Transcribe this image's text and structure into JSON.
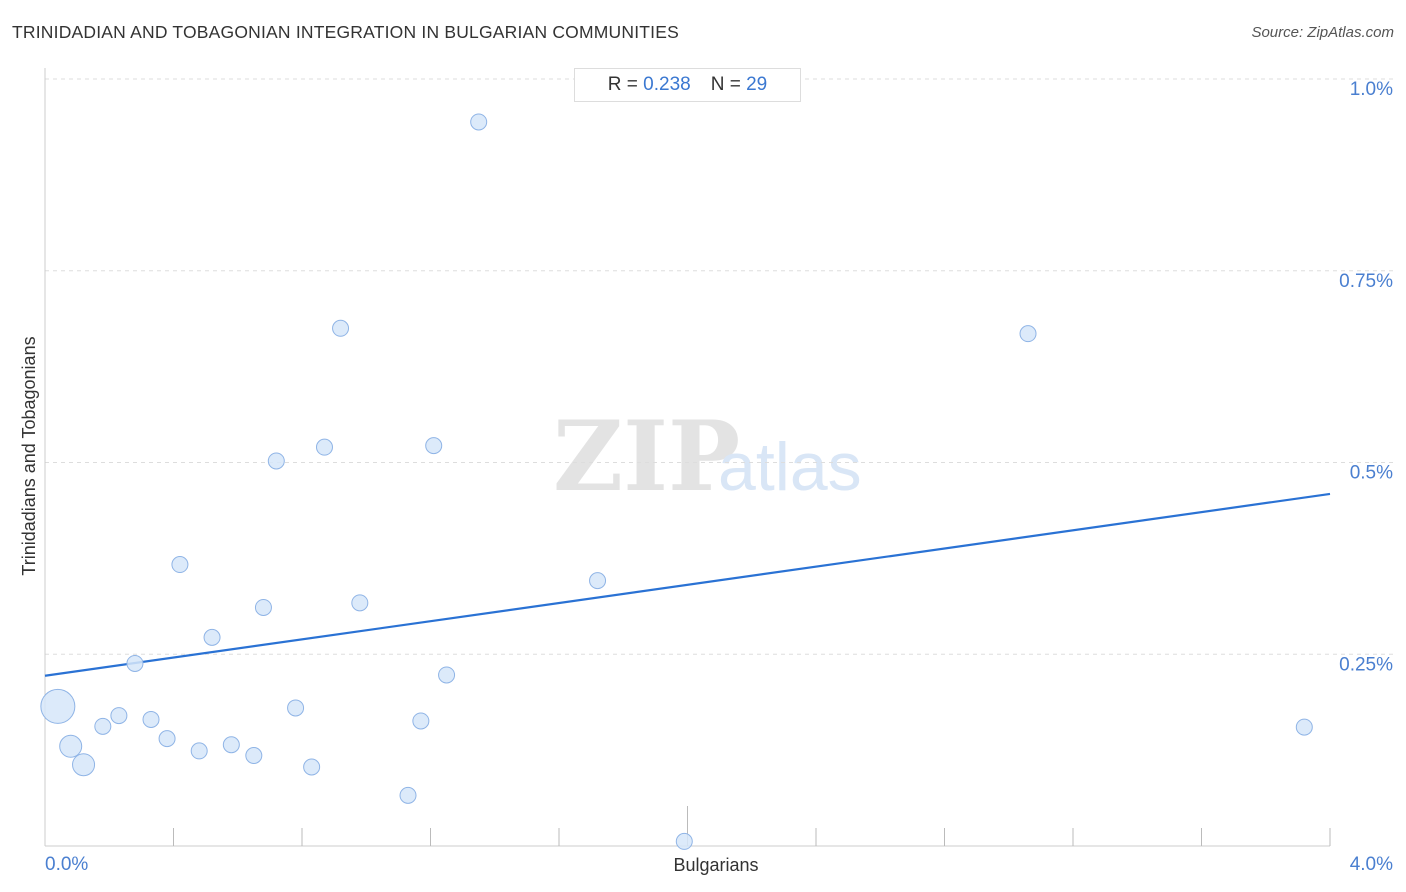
{
  "header": {
    "title": "TRINIDADIAN AND TOBAGONIAN INTEGRATION IN BULGARIAN COMMUNITIES",
    "source": "Source: ZipAtlas.com"
  },
  "stats": {
    "r_label": "R =",
    "r_value": "0.238",
    "n_label": "N =",
    "n_value": "29"
  },
  "watermark": {
    "zip": "ZIP",
    "atlas": "atlas"
  },
  "colors": {
    "point_fill": "#d6e6f9",
    "point_stroke": "#8fb4e6",
    "trend_line": "#2a72d4",
    "tick_label": "#4a7fd0",
    "grid": "#dddddd"
  },
  "chart_data": {
    "type": "scatter",
    "title": "TRINIDADIAN AND TOBAGONIAN INTEGRATION IN BULGARIAN COMMUNITIES",
    "xlabel": "Bulgarians",
    "ylabel": "Trinidadians and Tobagonians",
    "xlim": [
      0,
      4.0
    ],
    "ylim": [
      0,
      1.0
    ],
    "x_unit": "%",
    "y_unit": "%",
    "x_tick_labels": [
      {
        "value": 0.0,
        "label": "0.0%"
      },
      {
        "value": 4.0,
        "label": "4.0%"
      }
    ],
    "y_tick_labels": [
      {
        "value": 0.25,
        "label": "0.25%"
      },
      {
        "value": 0.5,
        "label": "0.5%"
      },
      {
        "value": 0.75,
        "label": "0.75%"
      },
      {
        "value": 1.0,
        "label": "1.0%"
      }
    ],
    "grid": "horizontal dashed",
    "trend_line": {
      "x": [
        0.0,
        4.0
      ],
      "y": [
        0.222,
        0.459
      ]
    },
    "points": [
      {
        "x": 0.04,
        "y": 0.182,
        "size": "large"
      },
      {
        "x": 0.08,
        "y": 0.13,
        "size": "medium"
      },
      {
        "x": 0.12,
        "y": 0.106,
        "size": "medium"
      },
      {
        "x": 0.18,
        "y": 0.156,
        "size": "small"
      },
      {
        "x": 0.23,
        "y": 0.17,
        "size": "small"
      },
      {
        "x": 0.28,
        "y": 0.238,
        "size": "small"
      },
      {
        "x": 0.33,
        "y": 0.165,
        "size": "small"
      },
      {
        "x": 0.38,
        "y": 0.14,
        "size": "small"
      },
      {
        "x": 0.42,
        "y": 0.367,
        "size": "small"
      },
      {
        "x": 0.48,
        "y": 0.124,
        "size": "small"
      },
      {
        "x": 0.52,
        "y": 0.272,
        "size": "small"
      },
      {
        "x": 0.58,
        "y": 0.132,
        "size": "small"
      },
      {
        "x": 0.65,
        "y": 0.118,
        "size": "small"
      },
      {
        "x": 0.68,
        "y": 0.311,
        "size": "small"
      },
      {
        "x": 0.72,
        "y": 0.502,
        "size": "small"
      },
      {
        "x": 0.78,
        "y": 0.18,
        "size": "small"
      },
      {
        "x": 0.83,
        "y": 0.103,
        "size": "small"
      },
      {
        "x": 0.87,
        "y": 0.52,
        "size": "small"
      },
      {
        "x": 0.92,
        "y": 0.675,
        "size": "small"
      },
      {
        "x": 0.98,
        "y": 0.317,
        "size": "small"
      },
      {
        "x": 1.13,
        "y": 0.066,
        "size": "small"
      },
      {
        "x": 1.17,
        "y": 0.163,
        "size": "small"
      },
      {
        "x": 1.21,
        "y": 0.522,
        "size": "small"
      },
      {
        "x": 1.25,
        "y": 0.223,
        "size": "small"
      },
      {
        "x": 1.35,
        "y": 0.944,
        "size": "small"
      },
      {
        "x": 1.72,
        "y": 0.346,
        "size": "small"
      },
      {
        "x": 1.99,
        "y": 0.006,
        "size": "small"
      },
      {
        "x": 3.06,
        "y": 0.668,
        "size": "small"
      },
      {
        "x": 3.92,
        "y": 0.155,
        "size": "small"
      }
    ]
  }
}
